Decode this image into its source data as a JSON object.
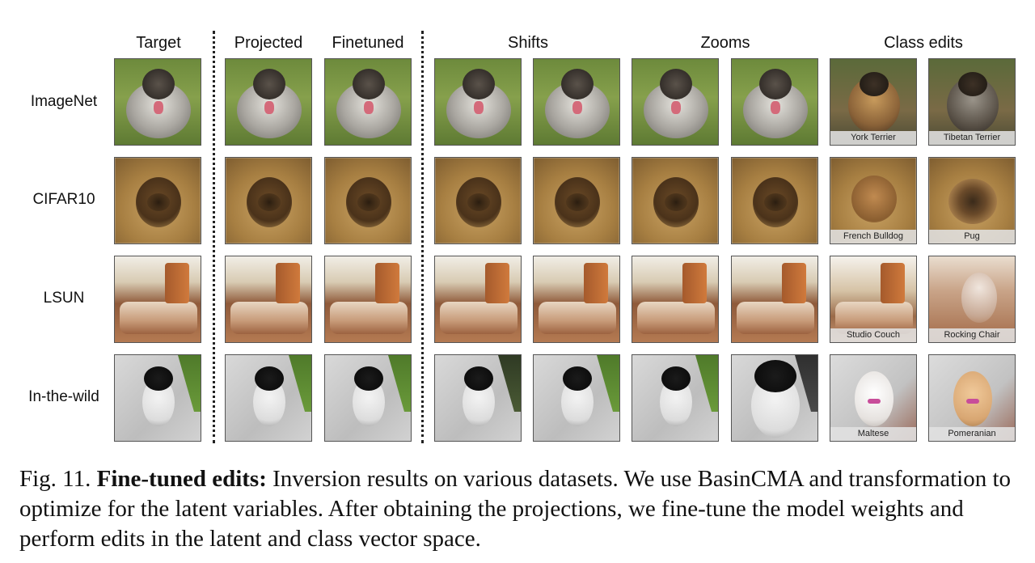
{
  "columns": {
    "target": "Target",
    "projected": "Projected",
    "finetuned": "Finetuned",
    "shifts": "Shifts",
    "zooms": "Zooms",
    "class_edits": "Class edits"
  },
  "rows": [
    "ImageNet",
    "CIFAR10",
    "LSUN",
    "In-the-wild"
  ],
  "class_edit_labels": [
    [
      "York Terrier",
      "Tibetan Terrier"
    ],
    [
      "French Bulldog",
      "Pug"
    ],
    [
      "Studio Couch",
      "Rocking Chair"
    ],
    [
      "Maltese",
      "Pomeranian"
    ]
  ],
  "caption": {
    "label": "Fig. 11.",
    "bold": "Fine-tuned edits:",
    "text": "Inversion results on various datasets. We use BasinCMA and transformation to optimize for the latent variables. After obtaining the projections, we fine-tune the model weights and perform edits in the latent and class vector space."
  }
}
